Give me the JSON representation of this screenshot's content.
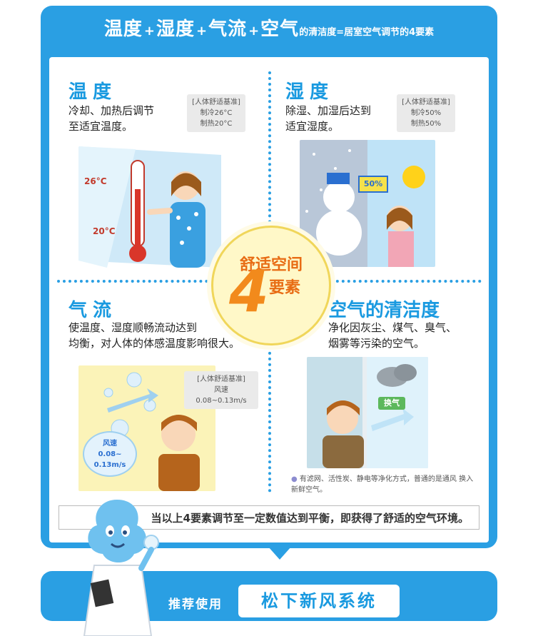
{
  "header": {
    "t1": "温度",
    "t2": "湿度",
    "t3": "气流",
    "t4": "空气",
    "plus": "+",
    "rest": "的清洁度=居室空气调节的4要素"
  },
  "quadrants": {
    "temperature": {
      "title": "温度",
      "desc1": "冷却、加热后调节",
      "desc2": "至适宜温度。",
      "std_title": "[人体舒适基准]",
      "std1": "制冷26°C",
      "std2": "制热20°C",
      "thermo_hi": "26°C",
      "thermo_lo": "20°C"
    },
    "humidity": {
      "title": "湿度",
      "desc1": "除湿、加湿后达到",
      "desc2": "适宜湿度。",
      "std_title": "[人体舒适基准]",
      "std1": "制冷50%",
      "std2": "制热50%",
      "sign": "50%"
    },
    "airflow": {
      "title": "气流",
      "desc1": "使温度、湿度顺畅流动达到",
      "desc2": "均衡，对人体的体感温度影响很大。",
      "std_title": "[人体舒适基准]",
      "std1": "风速",
      "std2": "0.08~0.13m/s",
      "bubble1": "风速",
      "bubble2": "0.08~",
      "bubble3": "0.13m/s"
    },
    "cleanliness": {
      "title": "空气的清洁度",
      "desc1": "净化因灰尘、煤气、臭气、",
      "desc2": "烟雾等污染的空气。",
      "sign": "换气",
      "caption": "有滤网、活性炭、静电等净化方式，普通的是通风 换入新鲜空气。"
    }
  },
  "center": {
    "line1": "舒适空间",
    "digit": "4",
    "line2": "要素"
  },
  "bottom_note": "当以上4要素调节至一定数值达到平衡，即获得了舒适的空气环境。",
  "footer": {
    "prefix": "推荐使用",
    "product": "松下新风系统"
  },
  "colors": {
    "primary_blue": "#2a9fe3",
    "title_blue": "#1a9ae0",
    "accent_orange": "#e86c14"
  }
}
